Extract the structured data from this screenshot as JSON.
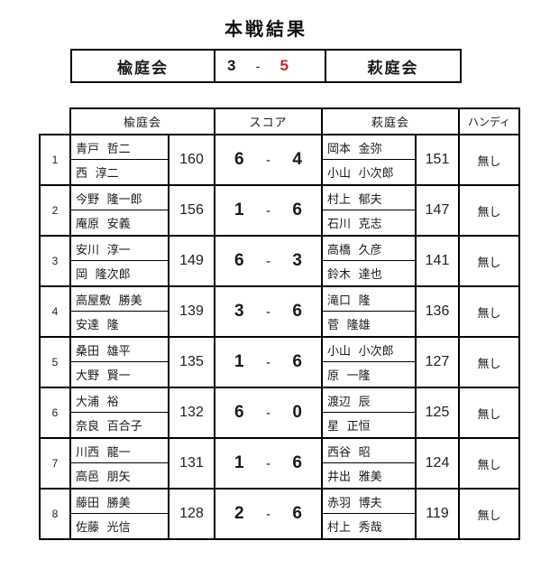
{
  "title": "本戦結果",
  "summary": {
    "left_team": "楡庭会",
    "left_score": "3",
    "separator": "-",
    "right_score": "5",
    "right_team": "萩庭会"
  },
  "table": {
    "headers": {
      "left_team": "楡庭会",
      "score": "スコア",
      "right_team": "萩庭会",
      "handicap": "ハンディ"
    },
    "score_separator": "-",
    "rows": [
      {
        "no": "1",
        "left_players": [
          "青戸 哲二",
          "西 淳二"
        ],
        "left_total": "160",
        "score_left": "6",
        "score_right": "4",
        "right_players": [
          "岡本 金弥",
          "小山 小次郎"
        ],
        "right_total": "151",
        "handicap": "無し"
      },
      {
        "no": "2",
        "left_players": [
          "今野 隆一郎",
          "庵原 安義"
        ],
        "left_total": "156",
        "score_left": "1",
        "score_right": "6",
        "right_players": [
          "村上 郁夫",
          "石川 克志"
        ],
        "right_total": "147",
        "handicap": "無し"
      },
      {
        "no": "3",
        "left_players": [
          "安川 淳一",
          "岡 隆次郎"
        ],
        "left_total": "149",
        "score_left": "6",
        "score_right": "3",
        "right_players": [
          "高橋 久彦",
          "鈴木 達也"
        ],
        "right_total": "141",
        "handicap": "無し"
      },
      {
        "no": "4",
        "left_players": [
          "高屋敷 勝美",
          "安達 隆"
        ],
        "left_total": "139",
        "score_left": "3",
        "score_right": "6",
        "right_players": [
          "滝口 隆",
          "菅 隆雄"
        ],
        "right_total": "136",
        "handicap": "無し"
      },
      {
        "no": "5",
        "left_players": [
          "桑田 雄平",
          "大野 賢一"
        ],
        "left_total": "135",
        "score_left": "1",
        "score_right": "6",
        "right_players": [
          "小山 小次郎",
          "原 一隆"
        ],
        "right_total": "127",
        "handicap": "無し"
      },
      {
        "no": "6",
        "left_players": [
          "大浦 裕",
          "奈良 百合子"
        ],
        "left_total": "132",
        "score_left": "6",
        "score_right": "0",
        "right_players": [
          "渡辺 辰",
          "星 正恒"
        ],
        "right_total": "125",
        "handicap": "無し"
      },
      {
        "no": "7",
        "left_players": [
          "川西 龍一",
          "高邑 朋矢"
        ],
        "left_total": "131",
        "score_left": "1",
        "score_right": "6",
        "right_players": [
          "西谷 昭",
          "井出 雅美"
        ],
        "right_total": "124",
        "handicap": "無し"
      },
      {
        "no": "8",
        "left_players": [
          "藤田 勝美",
          "佐藤 光信"
        ],
        "left_total": "128",
        "score_left": "2",
        "score_right": "6",
        "right_players": [
          "赤羽 博夫",
          "村上 秀哉"
        ],
        "right_total": "119",
        "handicap": "無し"
      }
    ]
  },
  "colors": {
    "accent_red": "#cc2222",
    "border": "#000000",
    "text": "#1a1a1a"
  }
}
